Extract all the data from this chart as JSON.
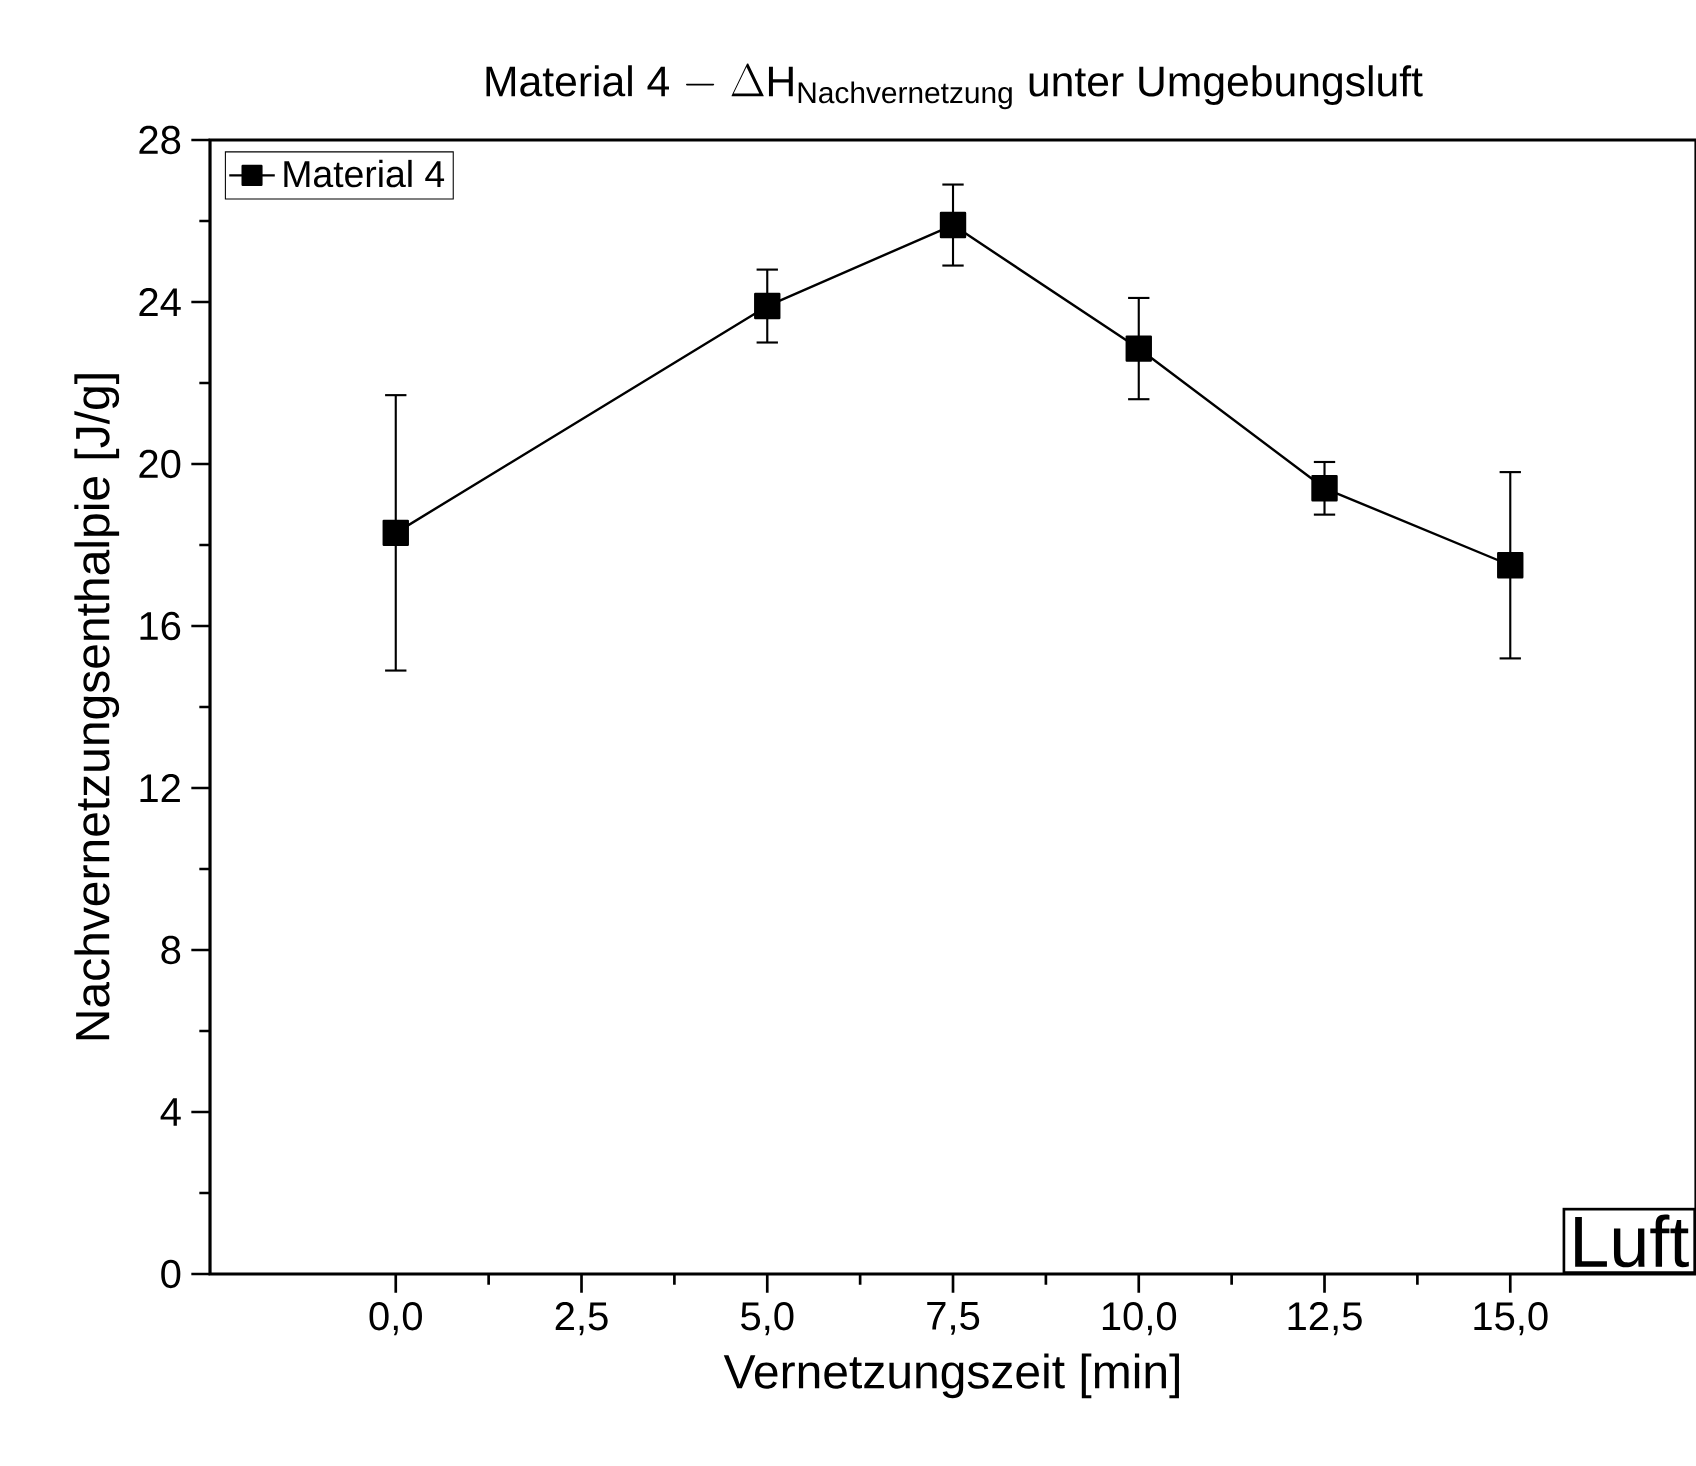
{
  "chart_data": {
    "type": "line",
    "title": "\\mathrm{Material\\ 4\\ -\\ }\\Delta\\mathrm{H}_{\\mathrm{Nachvernetzung}}\\mathrm{\\ unter\\ Umgebungsluft}",
    "xlabel": "Vernetzungszeit [min]",
    "ylabel": "Nachvernetzungsenthalpie [J/g]",
    "x": [
      0,
      5,
      7.5,
      10,
      12.5,
      15
    ],
    "series": [
      {
        "name": "Material 4",
        "color": "#000000",
        "values": [
          18.3,
          23.9,
          25.9,
          22.85,
          19.4,
          17.5
        ],
        "errors": [
          3.4,
          0.9,
          1.0,
          1.25,
          0.65,
          2.3
        ]
      }
    ],
    "xlim": [
      -2.5,
      17.5
    ],
    "xticks": [
      {
        "value": 0,
        "label": "0,0"
      },
      {
        "value": 2.5,
        "label": "2,5"
      },
      {
        "value": 5,
        "label": "5,0"
      },
      {
        "value": 7.5,
        "label": "7,5"
      },
      {
        "value": 10,
        "label": "10,0"
      },
      {
        "value": 12.5,
        "label": "12,5"
      },
      {
        "value": 15,
        "label": "15,0"
      }
    ],
    "ylim": [
      0,
      28
    ],
    "yticks": [
      0,
      4,
      8,
      12,
      16,
      20,
      24,
      28
    ],
    "annotations": [
      "Luft"
    ],
    "legend": "top left",
    "grid": false,
    "marker": "square",
    "line_style": "solid"
  }
}
